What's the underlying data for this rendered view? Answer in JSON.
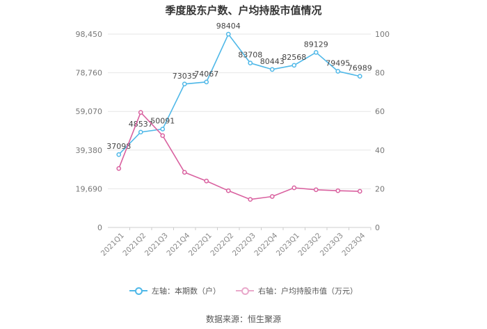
{
  "chart_data": {
    "type": "line",
    "title": "季度股东户数、户均持股市值情况",
    "categories": [
      "2021Q1",
      "2021Q2",
      "2021Q3",
      "2021Q4",
      "2022Q1",
      "2022Q2",
      "2022Q3",
      "2022Q4",
      "2023Q1",
      "2023Q2",
      "2023Q3",
      "2023Q4"
    ],
    "series": [
      {
        "name": "左轴：本期数（户）",
        "axis": "left",
        "color": "#4fb8e8",
        "values": [
          37098,
          48537,
          50091,
          73035,
          74067,
          98404,
          83708,
          80443,
          82568,
          89129,
          79495,
          76989
        ],
        "data_labels": [
          "37098",
          "48537",
          "50091",
          "73035",
          "74067",
          "98404",
          "83708",
          "80443",
          "82568",
          "89129",
          "79495",
          "76989"
        ]
      },
      {
        "name": "右轴：户均持股市值（万元）",
        "axis": "right",
        "color": "#d9609f",
        "values": [
          30.5,
          59.5,
          47.5,
          28.5,
          24,
          19,
          14.5,
          16,
          20.5,
          19.5,
          19,
          18.7
        ]
      }
    ],
    "left_axis": {
      "ylim": [
        0,
        98450
      ],
      "ticks": [
        0,
        19690,
        39380,
        59070,
        78760,
        98450
      ],
      "tick_labels": [
        "0",
        "19,690",
        "39,380",
        "59,070",
        "78,760",
        "98,450"
      ]
    },
    "right_axis": {
      "ylim": [
        0,
        100
      ],
      "ticks": [
        0,
        20,
        40,
        60,
        80,
        100
      ],
      "tick_labels": [
        "0",
        "20",
        "40",
        "60",
        "80",
        "100"
      ]
    },
    "grid": "horizontal",
    "legend_position": "bottom-center",
    "source": "数据来源：恒生聚源"
  }
}
